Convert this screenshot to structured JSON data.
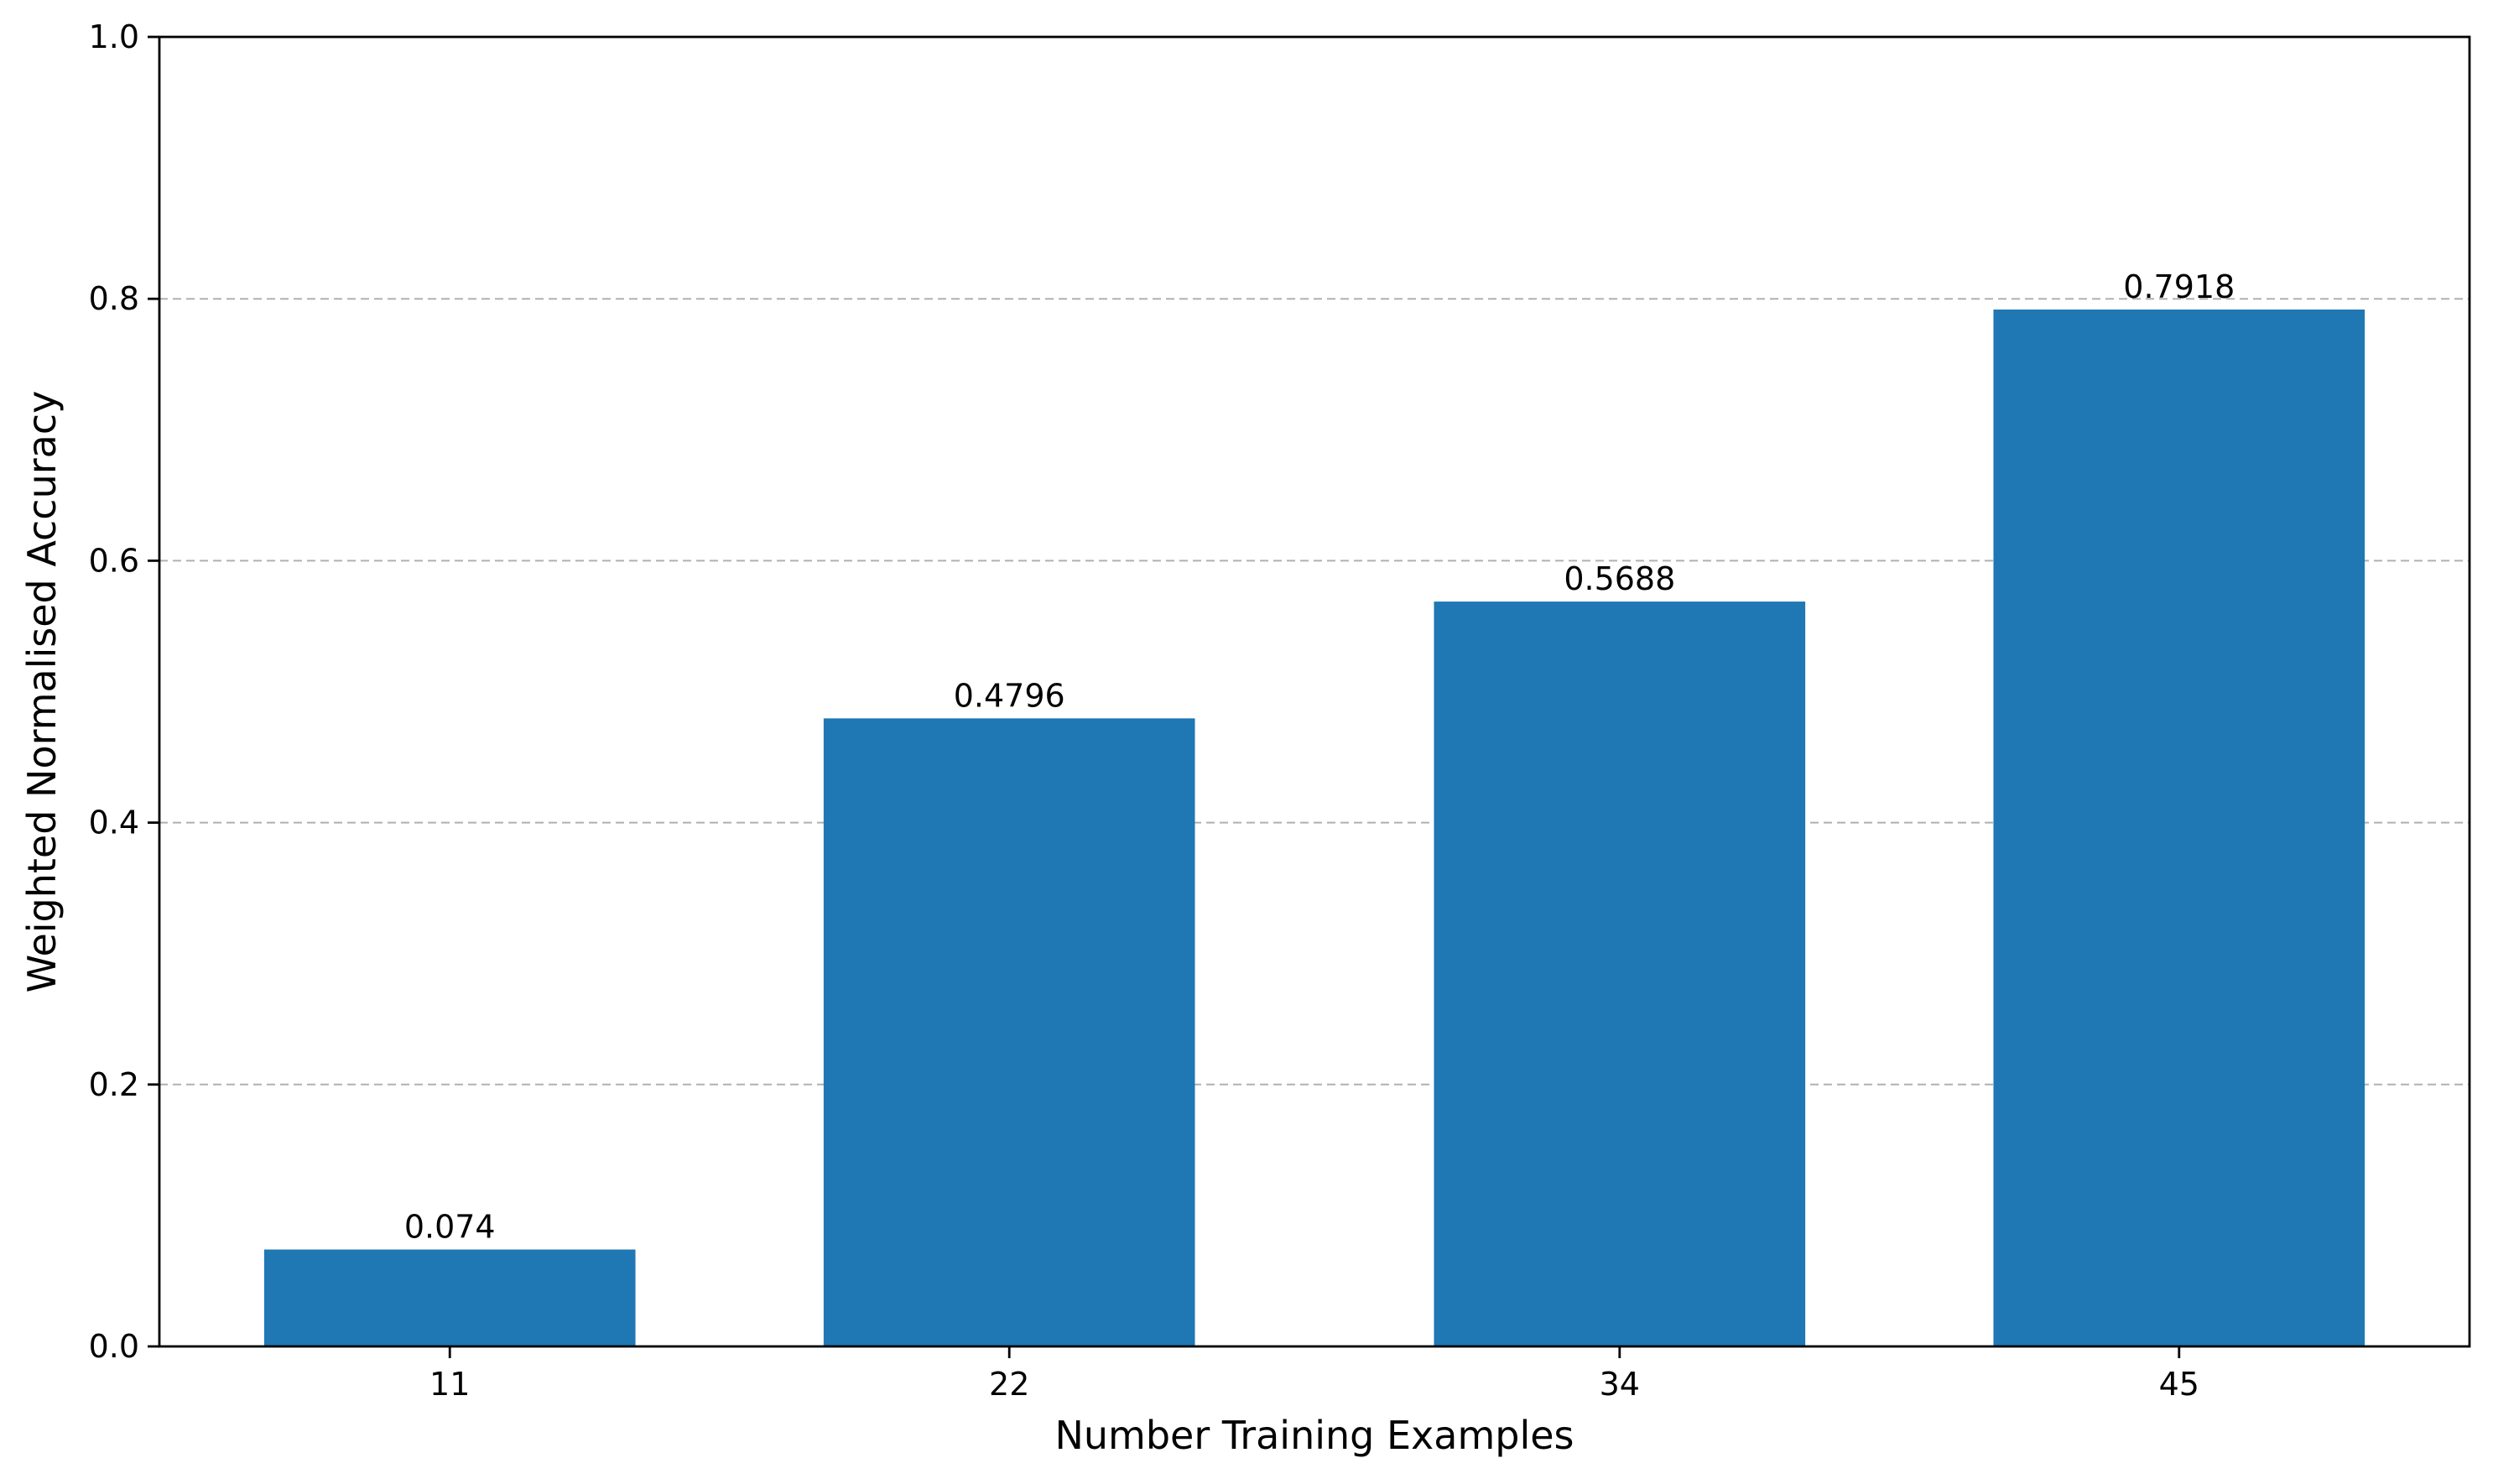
{
  "chart_data": {
    "type": "bar",
    "title": "",
    "xlabel": "Number Training Examples",
    "ylabel": "Weighted Normalised Accuracy",
    "categories": [
      "11",
      "22",
      "34",
      "45"
    ],
    "x": [
      11,
      22,
      34,
      45
    ],
    "values": [
      0.074,
      0.4796,
      0.5688,
      0.7918
    ],
    "value_labels": [
      "0.074",
      "0.4796",
      "0.5688",
      "0.7918"
    ],
    "ylim": [
      0,
      1.0
    ],
    "yticks": [
      0.0,
      0.2,
      0.4,
      0.6,
      0.8,
      1.0
    ],
    "ytick_labels": [
      "0.0",
      "0.2",
      "0.4",
      "0.6",
      "0.8",
      "1.0"
    ],
    "grid": "y-axis dashed",
    "bar_color": "#1f77b4"
  }
}
